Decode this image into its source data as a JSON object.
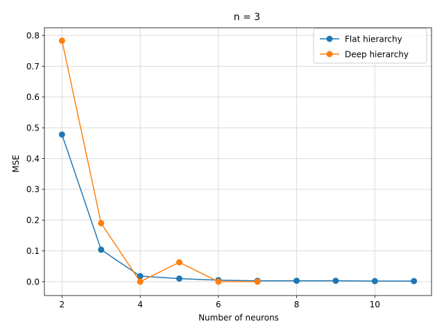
{
  "chart_data": {
    "type": "line",
    "title": "n = 3",
    "xlabel": "Number of neurons",
    "ylabel": "MSE",
    "xlim": [
      1.55,
      11.45
    ],
    "ylim": [
      -0.045,
      0.825
    ],
    "xticks": [
      2,
      4,
      6,
      8,
      10
    ],
    "yticks": [
      0.0,
      0.1,
      0.2,
      0.3,
      0.4,
      0.5,
      0.6,
      0.7,
      0.8
    ],
    "ytick_labels": [
      "0.0",
      "0.1",
      "0.2",
      "0.3",
      "0.4",
      "0.5",
      "0.6",
      "0.7",
      "0.8"
    ],
    "grid": true,
    "legend_position": "top-right",
    "series": [
      {
        "name": "Flat hierarchy",
        "color": "#1f77b4",
        "marker": "circle",
        "x": [
          2,
          3,
          4,
          5,
          6,
          7,
          8,
          9,
          10,
          11
        ],
        "y": [
          0.478,
          0.104,
          0.018,
          0.01,
          0.005,
          0.003,
          0.003,
          0.003,
          0.002,
          0.002
        ]
      },
      {
        "name": "Deep hierarchy",
        "color": "#ff7f0e",
        "marker": "circle",
        "x": [
          2,
          3,
          4,
          5,
          6,
          7
        ],
        "y": [
          0.783,
          0.19,
          0.0,
          0.063,
          0.0,
          0.0
        ]
      }
    ]
  }
}
